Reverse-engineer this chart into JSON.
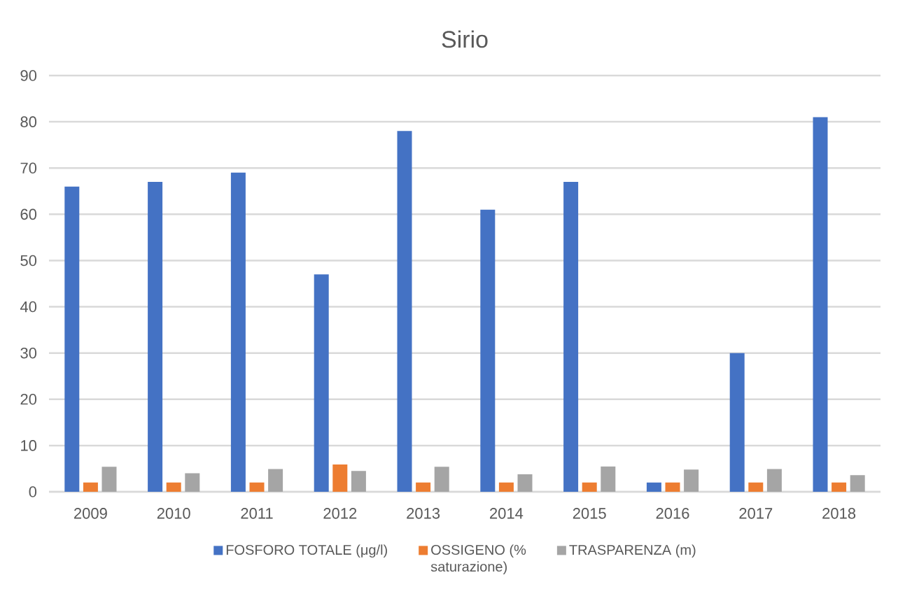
{
  "chart_data": {
    "type": "bar",
    "title": "Sirio",
    "categories": [
      "2009",
      "2010",
      "2011",
      "2012",
      "2013",
      "2014",
      "2015",
      "2016",
      "2017",
      "2018"
    ],
    "series": [
      {
        "name": "FOSFORO TOTALE (μg/l)",
        "color": "#4472c4",
        "values": [
          66,
          67,
          69,
          47,
          78,
          61,
          67,
          2,
          30,
          81
        ]
      },
      {
        "name": "OSSIGENO (% saturazione)",
        "color": "#ed7d31",
        "values": [
          2,
          2,
          2,
          5.9,
          2,
          2,
          2,
          2,
          2,
          2
        ]
      },
      {
        "name": "TRASPARENZA (m)",
        "color": "#a5a5a5",
        "values": [
          5.4,
          4.0,
          4.9,
          4.5,
          5.4,
          3.8,
          5.5,
          4.8,
          4.9,
          3.6
        ]
      }
    ],
    "ylim": [
      0,
      90
    ],
    "yticks": [
      0,
      10,
      20,
      30,
      40,
      50,
      60,
      70,
      80,
      90
    ],
    "grid": "y",
    "legend": "bottom"
  }
}
